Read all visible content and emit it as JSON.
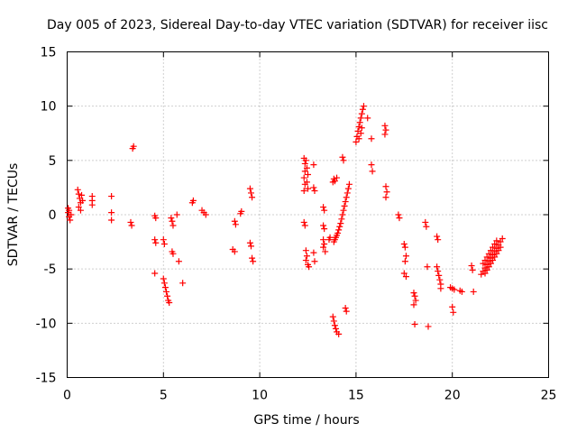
{
  "chart_data": {
    "type": "scatter",
    "title": "Day 005 of 2023, Sidereal Day-to-day VTEC variation (SDTVAR) for receiver iisc",
    "xlabel": "GPS time / hours",
    "ylabel": "SDTVAR / TECUs",
    "xlim": [
      0,
      25
    ],
    "ylim": [
      -15,
      15
    ],
    "xticks": [
      0,
      5,
      10,
      15,
      20,
      25
    ],
    "yticks": [
      -15,
      -10,
      -5,
      0,
      5,
      10,
      15
    ],
    "grid": true,
    "marker": "+",
    "color": "#ff0000",
    "series": [
      {
        "name": "SDTVAR",
        "points": [
          [
            0.05,
            0.6
          ],
          [
            0.05,
            0.2
          ],
          [
            0.1,
            -0.2
          ],
          [
            0.15,
            -0.5
          ],
          [
            0.1,
            0.4
          ],
          [
            0.2,
            0.0
          ],
          [
            0.55,
            2.3
          ],
          [
            0.6,
            1.9
          ],
          [
            0.65,
            1.5
          ],
          [
            0.7,
            1.1
          ],
          [
            0.6,
            0.7
          ],
          [
            0.7,
            0.4
          ],
          [
            0.75,
            1.8
          ],
          [
            0.8,
            1.3
          ],
          [
            1.3,
            1.7
          ],
          [
            1.3,
            1.3
          ],
          [
            1.3,
            0.9
          ],
          [
            2.3,
            1.7
          ],
          [
            2.3,
            0.2
          ],
          [
            2.3,
            -0.5
          ],
          [
            3.3,
            -0.7
          ],
          [
            3.35,
            -1.0
          ],
          [
            3.4,
            6.1
          ],
          [
            3.45,
            6.3
          ],
          [
            4.55,
            -0.1
          ],
          [
            4.6,
            -0.3
          ],
          [
            4.55,
            -2.3
          ],
          [
            4.6,
            -2.6
          ],
          [
            4.55,
            -5.4
          ],
          [
            5.0,
            -2.3
          ],
          [
            5.05,
            -2.7
          ],
          [
            5.0,
            -5.9
          ],
          [
            5.05,
            -6.3
          ],
          [
            5.1,
            -6.7
          ],
          [
            5.15,
            -7.1
          ],
          [
            5.2,
            -7.5
          ],
          [
            5.25,
            -7.9
          ],
          [
            5.3,
            -8.1
          ],
          [
            5.4,
            -0.3
          ],
          [
            5.45,
            -0.6
          ],
          [
            5.5,
            -1.0
          ],
          [
            5.45,
            -3.4
          ],
          [
            5.5,
            -3.6
          ],
          [
            5.7,
            0.0
          ],
          [
            5.8,
            -4.3
          ],
          [
            6.0,
            -6.3
          ],
          [
            6.5,
            1.1
          ],
          [
            6.55,
            1.3
          ],
          [
            7.0,
            0.4
          ],
          [
            7.1,
            0.2
          ],
          [
            7.2,
            0.0
          ],
          [
            8.6,
            -3.2
          ],
          [
            8.7,
            -3.4
          ],
          [
            8.7,
            -0.6
          ],
          [
            8.75,
            -0.9
          ],
          [
            9.0,
            0.1
          ],
          [
            9.05,
            0.3
          ],
          [
            9.5,
            2.4
          ],
          [
            9.55,
            2.0
          ],
          [
            9.6,
            1.6
          ],
          [
            9.5,
            -2.6
          ],
          [
            9.55,
            -2.9
          ],
          [
            9.6,
            -4.0
          ],
          [
            9.65,
            -4.3
          ],
          [
            12.3,
            5.2
          ],
          [
            12.35,
            4.7
          ],
          [
            12.35,
            4.0
          ],
          [
            12.3,
            3.4
          ],
          [
            12.35,
            2.8
          ],
          [
            12.3,
            2.2
          ],
          [
            12.4,
            5.0
          ],
          [
            12.45,
            4.3
          ],
          [
            12.5,
            3.7
          ],
          [
            12.45,
            3.0
          ],
          [
            12.5,
            2.4
          ],
          [
            12.3,
            -0.7
          ],
          [
            12.35,
            -1.0
          ],
          [
            12.4,
            -3.3
          ],
          [
            12.45,
            -3.8
          ],
          [
            12.4,
            -4.2
          ],
          [
            12.5,
            -4.6
          ],
          [
            12.55,
            -4.8
          ],
          [
            12.8,
            4.6
          ],
          [
            12.8,
            2.5
          ],
          [
            12.85,
            2.2
          ],
          [
            12.8,
            -3.5
          ],
          [
            12.85,
            -4.3
          ],
          [
            13.3,
            0.7
          ],
          [
            13.35,
            0.4
          ],
          [
            13.3,
            -1.0
          ],
          [
            13.35,
            -1.3
          ],
          [
            13.3,
            -2.3
          ],
          [
            13.35,
            -2.7
          ],
          [
            13.3,
            -3.0
          ],
          [
            13.4,
            -3.4
          ],
          [
            13.6,
            -2.3
          ],
          [
            13.65,
            -2.1
          ],
          [
            13.8,
            3.0
          ],
          [
            13.85,
            3.3
          ],
          [
            13.9,
            3.1
          ],
          [
            14.0,
            3.4
          ],
          [
            13.8,
            -9.4
          ],
          [
            13.85,
            -9.8
          ],
          [
            13.9,
            -10.2
          ],
          [
            13.95,
            -10.5
          ],
          [
            14.0,
            -10.8
          ],
          [
            14.1,
            -11.0
          ],
          [
            13.85,
            -2.5
          ],
          [
            13.9,
            -2.3
          ],
          [
            13.95,
            -2.1
          ],
          [
            14.0,
            -1.9
          ],
          [
            14.05,
            -1.7
          ],
          [
            14.1,
            -1.4
          ],
          [
            14.15,
            -1.1
          ],
          [
            14.2,
            -0.8
          ],
          [
            14.25,
            -0.4
          ],
          [
            14.3,
            0.0
          ],
          [
            14.35,
            0.4
          ],
          [
            14.4,
            0.8
          ],
          [
            14.45,
            1.2
          ],
          [
            14.5,
            1.6
          ],
          [
            14.55,
            2.0
          ],
          [
            14.6,
            2.4
          ],
          [
            14.65,
            2.8
          ],
          [
            14.3,
            5.3
          ],
          [
            14.35,
            5.0
          ],
          [
            14.45,
            -8.6
          ],
          [
            14.5,
            -8.9
          ],
          [
            15.0,
            6.7
          ],
          [
            15.05,
            7.2
          ],
          [
            15.1,
            7.7
          ],
          [
            15.15,
            8.1
          ],
          [
            15.2,
            8.5
          ],
          [
            15.25,
            8.9
          ],
          [
            15.3,
            9.3
          ],
          [
            15.35,
            9.7
          ],
          [
            15.4,
            10.0
          ],
          [
            15.15,
            7.0
          ],
          [
            15.25,
            7.5
          ],
          [
            15.3,
            8.0
          ],
          [
            15.6,
            8.9
          ],
          [
            15.8,
            4.6
          ],
          [
            15.85,
            4.0
          ],
          [
            15.8,
            7.0
          ],
          [
            16.5,
            8.2
          ],
          [
            16.55,
            7.8
          ],
          [
            16.5,
            7.4
          ],
          [
            16.55,
            2.6
          ],
          [
            16.6,
            2.1
          ],
          [
            16.55,
            1.6
          ],
          [
            17.2,
            0.0
          ],
          [
            17.25,
            -0.3
          ],
          [
            17.5,
            -2.7
          ],
          [
            17.55,
            -3.0
          ],
          [
            17.6,
            -3.8
          ],
          [
            17.55,
            -4.3
          ],
          [
            17.5,
            -5.4
          ],
          [
            17.6,
            -5.7
          ],
          [
            18.0,
            -7.2
          ],
          [
            18.05,
            -7.5
          ],
          [
            18.1,
            -7.9
          ],
          [
            18.0,
            -8.3
          ],
          [
            18.05,
            -10.1
          ],
          [
            18.6,
            -0.7
          ],
          [
            18.65,
            -1.1
          ],
          [
            18.7,
            -4.8
          ],
          [
            18.75,
            -10.3
          ],
          [
            19.2,
            -2.0
          ],
          [
            19.25,
            -2.3
          ],
          [
            19.2,
            -4.8
          ],
          [
            19.25,
            -5.2
          ],
          [
            19.3,
            -5.6
          ],
          [
            19.35,
            -6.0
          ],
          [
            19.4,
            -6.4
          ],
          [
            19.4,
            -6.8
          ],
          [
            19.9,
            -6.7
          ],
          [
            20.0,
            -6.8
          ],
          [
            20.1,
            -6.9
          ],
          [
            20.0,
            -8.5
          ],
          [
            20.05,
            -9.0
          ],
          [
            20.4,
            -7.0
          ],
          [
            20.5,
            -7.1
          ],
          [
            21.0,
            -4.7
          ],
          [
            21.05,
            -5.1
          ],
          [
            21.1,
            -7.1
          ],
          [
            21.5,
            -5.5
          ],
          [
            21.6,
            -5.2
          ],
          [
            21.7,
            -4.9
          ],
          [
            21.8,
            -4.6
          ],
          [
            21.9,
            -4.3
          ],
          [
            22.0,
            -4.0
          ],
          [
            22.1,
            -3.7
          ],
          [
            22.2,
            -3.4
          ],
          [
            22.3,
            -3.1
          ],
          [
            22.4,
            -2.8
          ],
          [
            22.5,
            -2.5
          ],
          [
            22.6,
            -2.2
          ],
          [
            21.6,
            -4.5
          ],
          [
            21.7,
            -4.2
          ],
          [
            21.8,
            -3.9
          ],
          [
            21.9,
            -3.6
          ],
          [
            22.0,
            -3.3
          ],
          [
            22.1,
            -3.0
          ],
          [
            22.2,
            -2.7
          ],
          [
            22.3,
            -2.4
          ],
          [
            21.7,
            -5.4
          ],
          [
            21.8,
            -5.1
          ],
          [
            21.9,
            -4.8
          ],
          [
            22.0,
            -4.5
          ],
          [
            22.1,
            -4.2
          ],
          [
            22.2,
            -3.9
          ],
          [
            22.3,
            -3.6
          ],
          [
            22.4,
            -3.3
          ],
          [
            22.5,
            -3.0
          ]
        ]
      }
    ]
  }
}
